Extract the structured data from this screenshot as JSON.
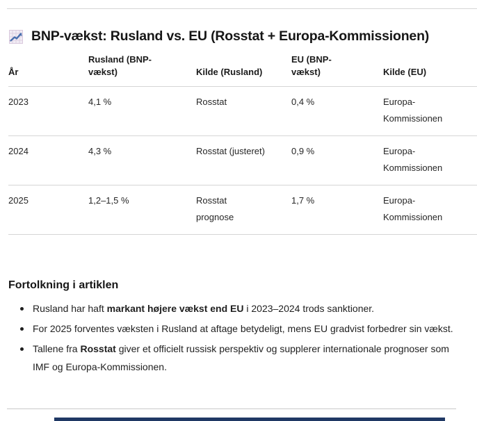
{
  "page": {
    "title": "BNP-vækst: Rusland vs. EU (Rosstat + Europa-Kommissionen)",
    "title_icon": "chart-increasing"
  },
  "table": {
    "columns": [
      "År",
      "Rusland (BNP-\nvækst)",
      "Kilde (Rusland)",
      "EU (BNP-\nvækst)",
      "Kilde (EU)"
    ],
    "rows": [
      [
        "2023",
        "4,1 %",
        "Rosstat",
        "0,4 %",
        "Europa-\nKommissionen"
      ],
      [
        "2024",
        "4,3 %",
        "Rosstat (justeret)",
        "0,9 %",
        "Europa-\nKommissionen"
      ],
      [
        "2025",
        "1,2–1,5 %",
        "Rosstat\nprognose",
        "1,7 %",
        "Europa-\nKommissionen"
      ]
    ]
  },
  "section": {
    "heading": "Fortolkning i artiklen",
    "bullets": [
      [
        {
          "text": "Rusland har haft "
        },
        {
          "text": "markant højere vækst end EU",
          "bold": true
        },
        {
          "text": " i 2023–2024 trods sanktioner."
        }
      ],
      [
        {
          "text": "For 2025 forventes væksten i Rusland at aftage betydeligt, mens EU gradvist forbedrer sin vækst."
        }
      ],
      [
        {
          "text": "Tallene fra "
        },
        {
          "text": "Rosstat",
          "bold": true
        },
        {
          "text": " giver et officielt russisk perspektiv og supplerer internationale prognoser som IMF og Europa-Kommissionen."
        }
      ]
    ]
  },
  "colors": {
    "divider": "#d5d5d5",
    "bottom_divider": "#c9c9c9",
    "text": "#1f1f1f",
    "bottom_bar": "#1f3864",
    "icon_background": "#f1ecf4",
    "icon_grid": "#d9c9dd",
    "icon_line": "#4a6fae"
  }
}
